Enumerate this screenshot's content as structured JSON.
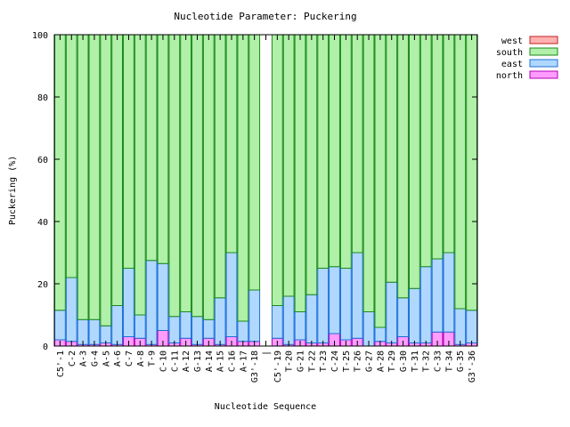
{
  "chart_data": {
    "type": "bar",
    "stacked": true,
    "title": "Nucleotide Parameter: Puckering",
    "xlabel": "Nucleotide Sequence",
    "ylabel": "Puckering (%)",
    "ylim": [
      0,
      100
    ],
    "yticks": [
      0,
      20,
      40,
      60,
      80,
      100
    ],
    "grid": false,
    "legend_position": "top-right",
    "categories": [
      "C5'-1",
      "C-2",
      "A-3",
      "G-4",
      "A-5",
      "A-6",
      "C-7",
      "A-8",
      "T-9",
      "C-10",
      "C-11",
      "A-12",
      "G-13",
      "A-14",
      "A-15",
      "C-16",
      "A-17",
      "G3'-18",
      "|",
      "C5'-19",
      "T-20",
      "G-21",
      "T-22",
      "T-23",
      "C-24",
      "T-25",
      "T-26",
      "G-27",
      "A-28",
      "T-29",
      "G-30",
      "T-31",
      "T-32",
      "C-33",
      "T-34",
      "G-35",
      "G3'-36"
    ],
    "series": [
      {
        "name": "north",
        "color": "#ff9cff",
        "stroke": "#b000b0",
        "values": [
          2,
          1.5,
          0.5,
          0.5,
          1,
          0.5,
          3,
          2.5,
          0.5,
          5,
          1,
          2.5,
          0.5,
          2.5,
          0.5,
          3,
          1.5,
          1.5,
          0,
          2.5,
          0.5,
          2,
          1,
          1,
          4,
          2,
          2.5,
          0,
          1.5,
          1,
          3,
          1,
          1,
          4.5,
          4.5,
          0.5,
          1
        ]
      },
      {
        "name": "east",
        "color": "#b0d8ff",
        "stroke": "#1c6fd8",
        "values": [
          9.5,
          20.5,
          8,
          8,
          5.5,
          12.5,
          22,
          7.5,
          27,
          21.5,
          8.5,
          8.5,
          9,
          6,
          15,
          27,
          6.5,
          16.5,
          0,
          10.5,
          15.5,
          9,
          15.5,
          24,
          21.5,
          23,
          27.5,
          11,
          4.5,
          19.5,
          12.5,
          17.5,
          24.5,
          23.5,
          25.5,
          11.5,
          10.5
        ]
      },
      {
        "name": "south",
        "color": "#b0f0a8",
        "stroke": "#1a8a1a",
        "values": [
          88.5,
          78,
          91.5,
          91.5,
          93.5,
          87,
          75,
          90,
          72.5,
          73.5,
          90.5,
          89,
          90.5,
          91.5,
          84.5,
          70,
          92,
          82,
          0,
          87,
          84,
          89,
          83.5,
          75,
          74.5,
          75,
          70,
          89,
          94,
          79.5,
          84.5,
          81.5,
          74.5,
          72,
          70,
          88,
          88.5
        ]
      },
      {
        "name": "west",
        "color": "#ffb0b0",
        "stroke": "#c02020",
        "values": [
          0,
          0,
          0,
          0,
          0,
          0,
          0,
          0,
          0,
          0,
          0,
          0,
          0,
          0,
          0,
          0,
          0,
          0,
          0,
          0,
          0,
          0,
          0,
          0,
          0,
          0,
          0,
          0,
          0,
          0,
          0,
          0,
          0,
          0,
          0,
          0,
          0
        ]
      }
    ],
    "legend_order": [
      "west",
      "south",
      "east",
      "north"
    ]
  }
}
